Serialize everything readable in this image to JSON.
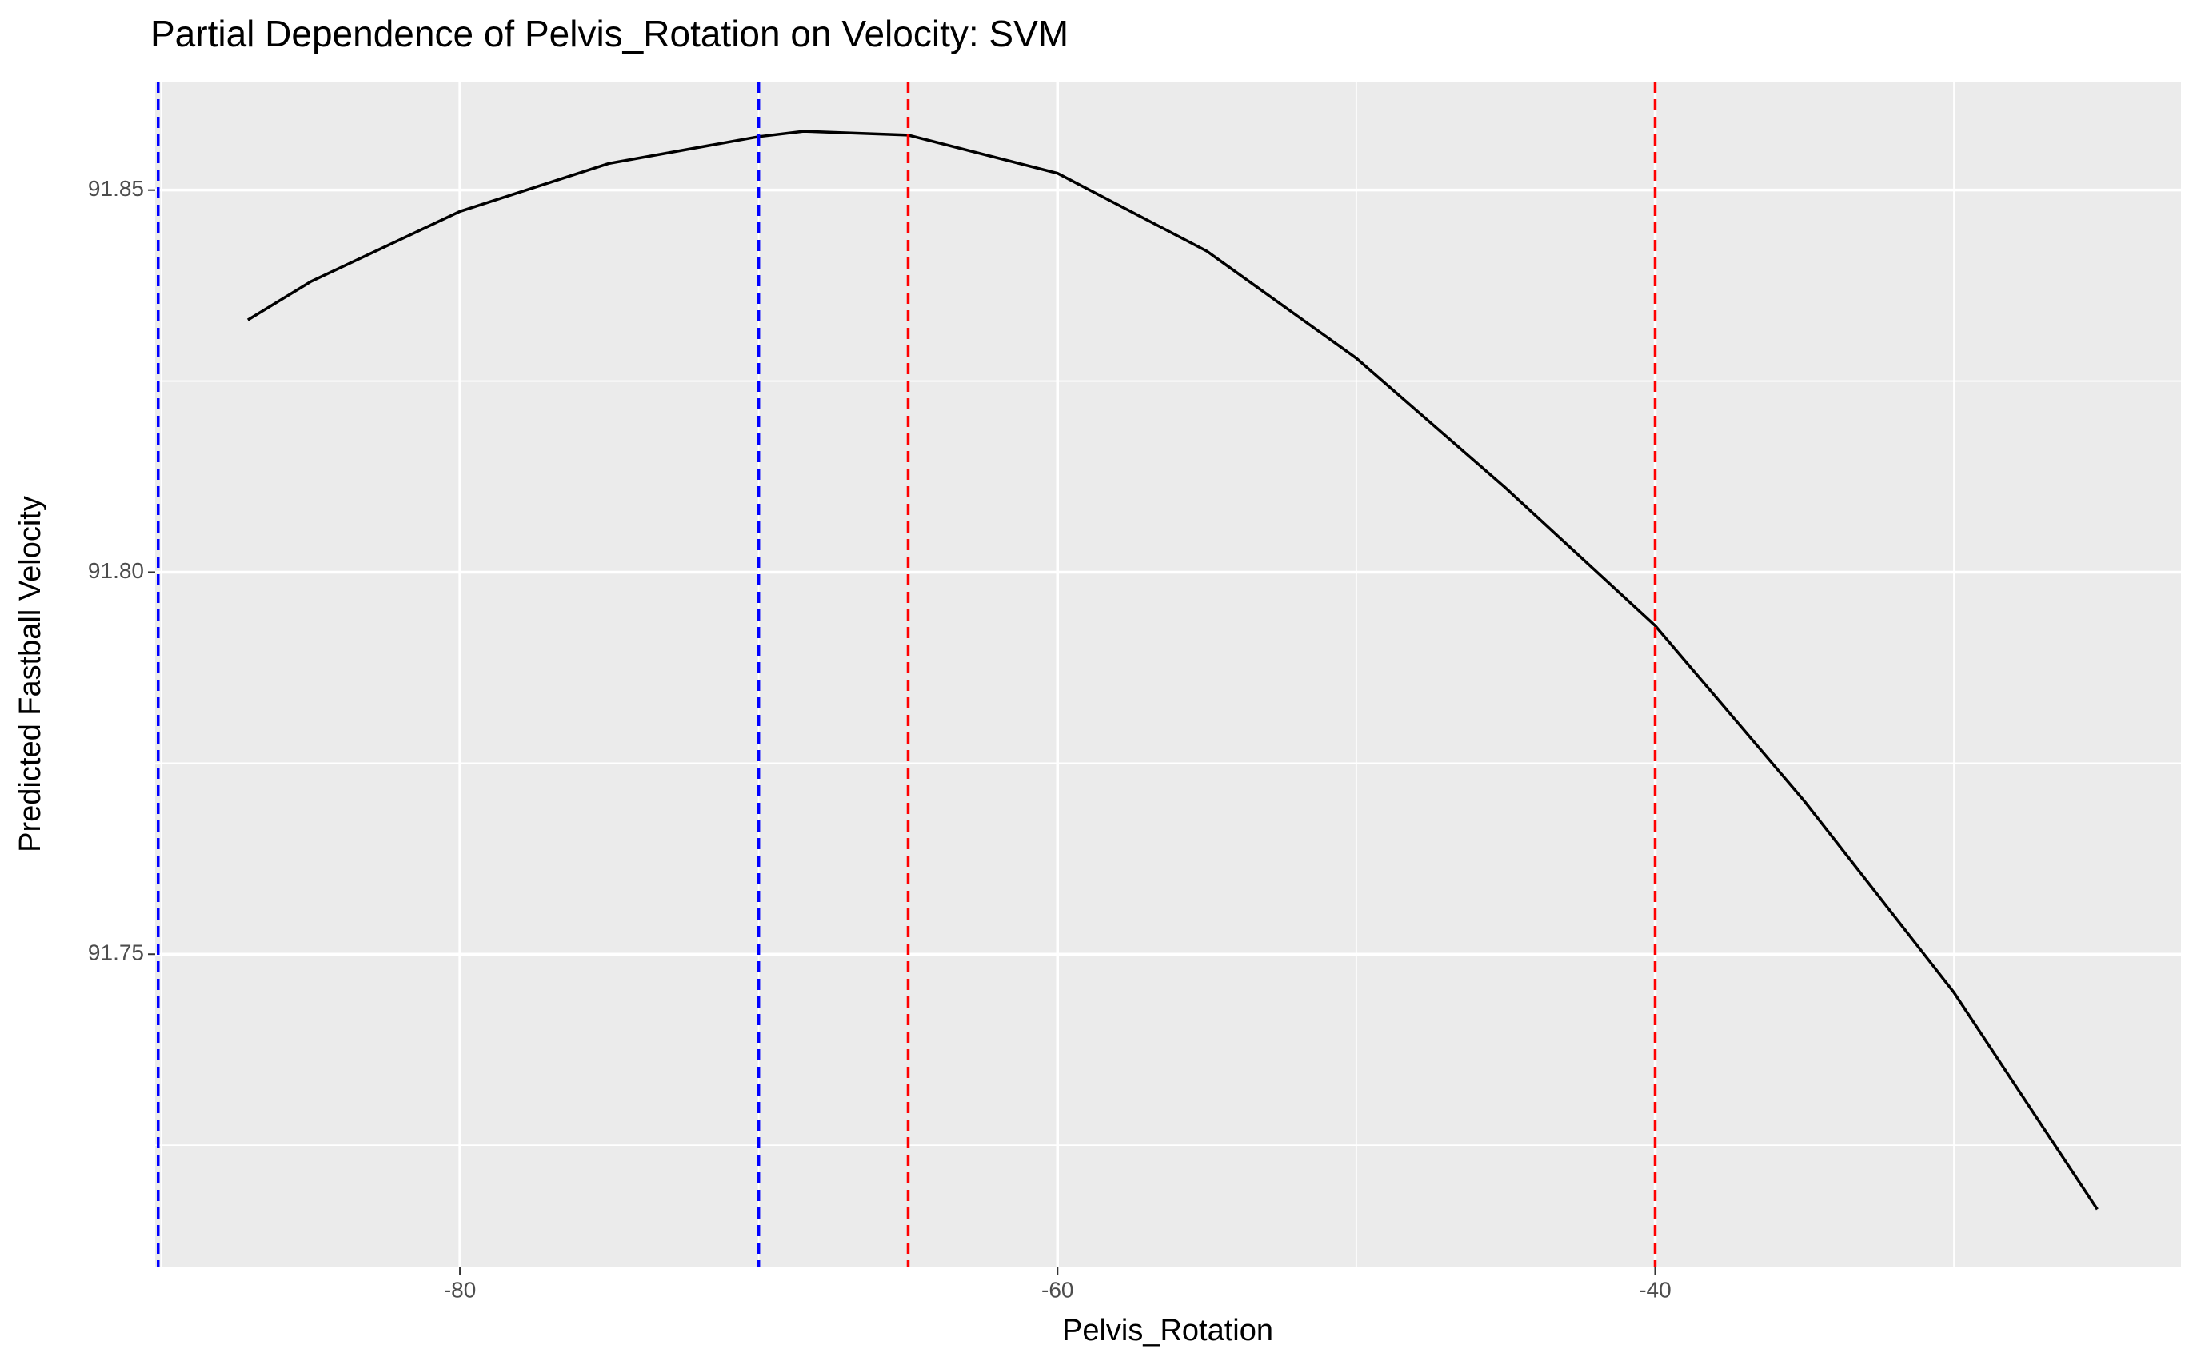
{
  "chart_data": {
    "type": "line",
    "title": "Partial Dependence of Pelvis_Rotation on Velocity: SVM",
    "xlabel": "Pelvis_Rotation",
    "ylabel": "Predicted Fastball Velocity",
    "x": [
      -87.1,
      -85,
      -80,
      -75,
      -70,
      -68.5,
      -65,
      -60,
      -55,
      -50,
      -45,
      -40,
      -35,
      -30,
      -25.2
    ],
    "series": [
      {
        "color": "#000000",
        "values": [
          91.833,
          91.838,
          91.8472,
          91.8535,
          91.857,
          91.8577,
          91.8572,
          91.8522,
          91.842,
          91.828,
          91.811,
          91.793,
          91.77,
          91.745,
          91.7166
        ]
      }
    ],
    "vlines": [
      {
        "x": -90.1,
        "color": "#0000ff"
      },
      {
        "x": -70,
        "color": "#0000ff"
      },
      {
        "x": -65,
        "color": "#ff0000"
      },
      {
        "x": -40,
        "color": "#ff0000"
      }
    ],
    "xlim": [
      -90.2,
      -22.4
    ],
    "ylim": [
      91.709,
      91.8642
    ],
    "xticks": [
      -80,
      -60,
      -40
    ],
    "yticks": [
      {
        "value": 91.75,
        "label": "91.75"
      },
      {
        "value": 91.8,
        "label": "91.80"
      },
      {
        "value": 91.85,
        "label": "91.85"
      }
    ],
    "grid": true
  }
}
